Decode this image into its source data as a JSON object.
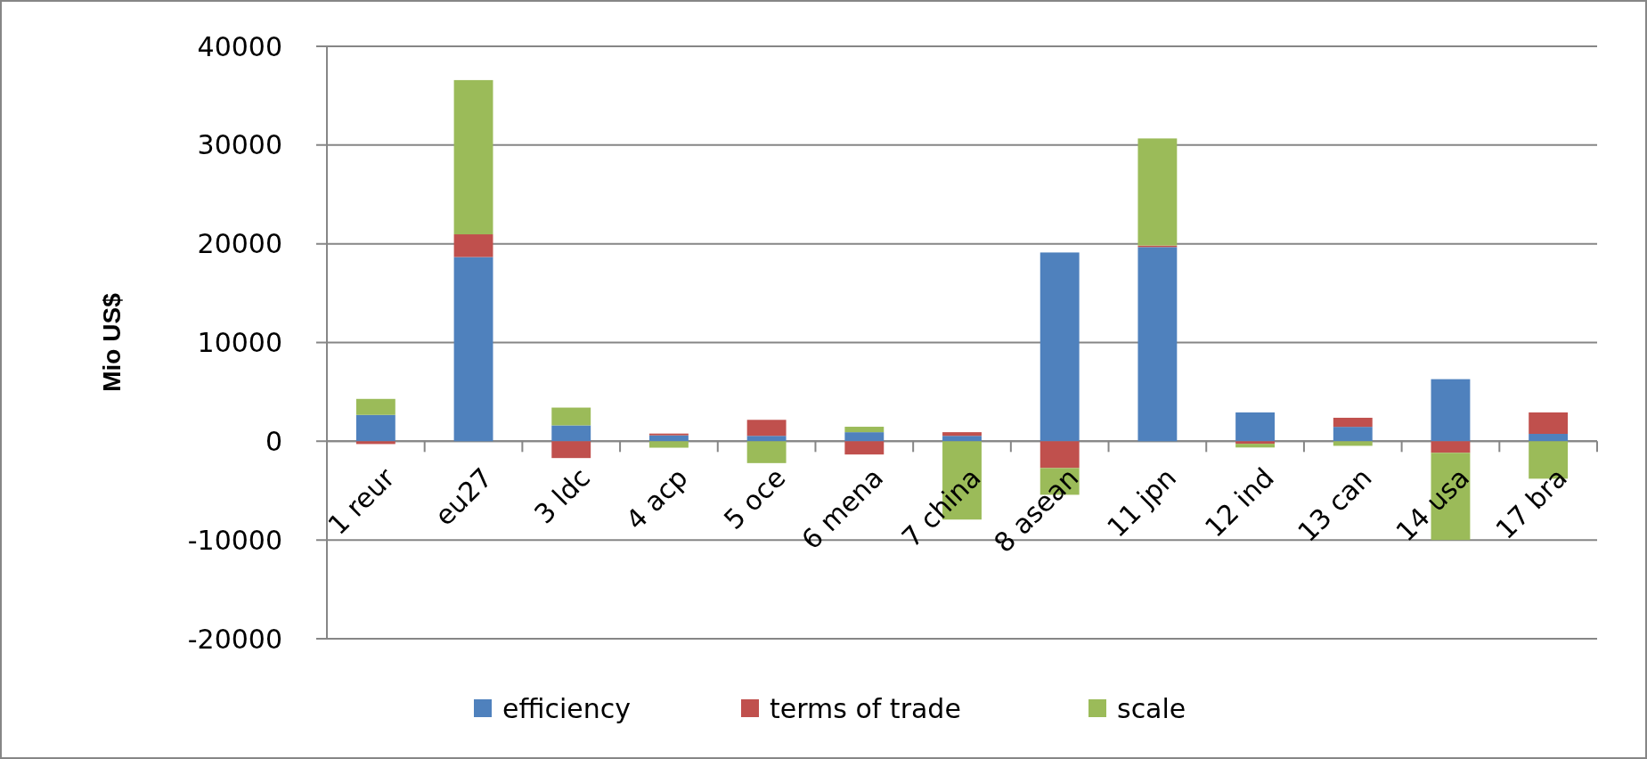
{
  "chart_data": {
    "type": "bar",
    "stacked": true,
    "ylabel": "Mio US$",
    "categories": [
      "1 reur",
      "eu27",
      "3 ldc",
      "4 acp",
      "5 oce",
      "6 mena",
      "7 china",
      "8 asean",
      "11 jpn",
      "12 ind",
      "13 can",
      "14 usa",
      "17 bra"
    ],
    "series": [
      {
        "name": "efficiency",
        "color": "#4f81bd",
        "values": [
          2670,
          18660,
          1610,
          600,
          550,
          920,
          550,
          19120,
          19670,
          2920,
          1460,
          6290,
          750
        ]
      },
      {
        "name": "terms of trade",
        "color": "#c0504d",
        "values": [
          -280,
          2300,
          -1700,
          180,
          1620,
          -1340,
          370,
          -2710,
          150,
          -250,
          920,
          -1170,
          2170
        ]
      },
      {
        "name": "scale",
        "color": "#9bbb59",
        "values": [
          1620,
          15620,
          1800,
          -650,
          -2210,
          550,
          -7930,
          -2710,
          10850,
          -380,
          -460,
          -8830,
          -3790
        ]
      }
    ],
    "ylim": [
      -20000,
      40000
    ],
    "yticks": [
      -20000,
      -10000,
      0,
      10000,
      20000,
      30000,
      40000
    ],
    "grid": "y",
    "legend": "bottom"
  }
}
